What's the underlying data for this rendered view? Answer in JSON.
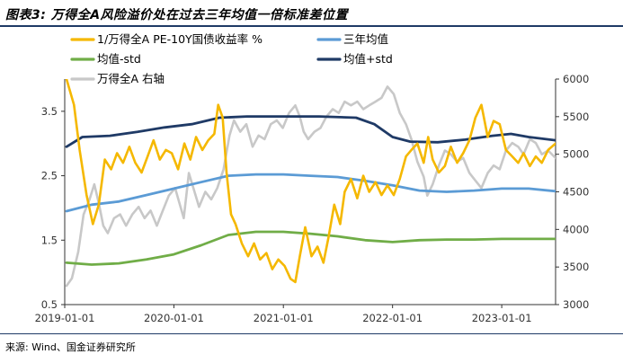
{
  "figure": {
    "title": "图表3: 万得全A风险溢价处在过去三年均值一倍标准差位置",
    "source": "来源: Wind、国金证券研究所"
  },
  "chart_data": {
    "type": "line",
    "x_tick_labels": [
      "2019-01-01",
      "2020-01-01",
      "2021-01-01",
      "2022-01-01",
      "2023-01-01"
    ],
    "x_range": [
      "2019-01-01",
      "2023-06-30"
    ],
    "left_axis": {
      "range": [
        0.5,
        4.0
      ],
      "ticks": [
        "0.5",
        "1.5",
        "2.5",
        "3.5"
      ]
    },
    "right_axis": {
      "range": [
        3000,
        6000
      ],
      "ticks": [
        "3000",
        "3500",
        "4000",
        "4500",
        "5000",
        "5500",
        "6000"
      ]
    },
    "legend": [
      "1/万得全A PE-10Y国债收益率 %",
      "三年均值",
      "均值-std",
      "均值+std",
      "万得全A 右轴"
    ],
    "legend_placement": "top",
    "grid": false,
    "series": [
      {
        "name": "1/万得全A PE-10Y国债收益率 %",
        "axis": "left",
        "color": "#F5B800",
        "points": [
          [
            "2019-01-07",
            4.0
          ],
          [
            "2019-02-01",
            3.6
          ],
          [
            "2019-02-20",
            2.9
          ],
          [
            "2019-03-15",
            2.2
          ],
          [
            "2019-04-05",
            1.75
          ],
          [
            "2019-04-25",
            2.05
          ],
          [
            "2019-05-15",
            2.75
          ],
          [
            "2019-06-05",
            2.6
          ],
          [
            "2019-06-25",
            2.85
          ],
          [
            "2019-07-15",
            2.7
          ],
          [
            "2019-08-05",
            2.95
          ],
          [
            "2019-08-25",
            2.7
          ],
          [
            "2019-09-15",
            2.55
          ],
          [
            "2019-10-05",
            2.8
          ],
          [
            "2019-10-25",
            3.05
          ],
          [
            "2019-11-15",
            2.75
          ],
          [
            "2019-12-05",
            2.9
          ],
          [
            "2019-12-25",
            2.85
          ],
          [
            "2020-01-15",
            2.6
          ],
          [
            "2020-02-05",
            3.0
          ],
          [
            "2020-02-25",
            2.75
          ],
          [
            "2020-03-15",
            3.1
          ],
          [
            "2020-04-05",
            2.9
          ],
          [
            "2020-04-25",
            3.05
          ],
          [
            "2020-05-15",
            3.15
          ],
          [
            "2020-05-28",
            3.6
          ],
          [
            "2020-06-12",
            3.4
          ],
          [
            "2020-06-25",
            2.55
          ],
          [
            "2020-07-10",
            1.9
          ],
          [
            "2020-07-25",
            1.75
          ],
          [
            "2020-08-15",
            1.45
          ],
          [
            "2020-09-05",
            1.25
          ],
          [
            "2020-09-25",
            1.45
          ],
          [
            "2020-10-15",
            1.2
          ],
          [
            "2020-11-05",
            1.3
          ],
          [
            "2020-11-25",
            1.05
          ],
          [
            "2020-12-15",
            1.2
          ],
          [
            "2021-01-05",
            1.1
          ],
          [
            "2021-01-25",
            0.9
          ],
          [
            "2021-02-10",
            0.85
          ],
          [
            "2021-02-25",
            1.25
          ],
          [
            "2021-03-15",
            1.7
          ],
          [
            "2021-04-05",
            1.25
          ],
          [
            "2021-04-25",
            1.4
          ],
          [
            "2021-05-15",
            1.15
          ],
          [
            "2021-06-01",
            1.55
          ],
          [
            "2021-06-20",
            2.05
          ],
          [
            "2021-07-10",
            1.75
          ],
          [
            "2021-07-25",
            2.25
          ],
          [
            "2021-08-15",
            2.45
          ],
          [
            "2021-09-05",
            2.15
          ],
          [
            "2021-09-25",
            2.5
          ],
          [
            "2021-10-15",
            2.25
          ],
          [
            "2021-11-05",
            2.4
          ],
          [
            "2021-11-25",
            2.2
          ],
          [
            "2021-12-15",
            2.35
          ],
          [
            "2022-01-05",
            2.2
          ],
          [
            "2022-01-25",
            2.45
          ],
          [
            "2022-02-15",
            2.8
          ],
          [
            "2022-03-05",
            2.9
          ],
          [
            "2022-03-25",
            3.0
          ],
          [
            "2022-04-15",
            2.7
          ],
          [
            "2022-04-30",
            3.1
          ],
          [
            "2022-05-15",
            2.75
          ],
          [
            "2022-06-05",
            2.55
          ],
          [
            "2022-06-25",
            2.65
          ],
          [
            "2022-07-15",
            2.95
          ],
          [
            "2022-08-05",
            2.7
          ],
          [
            "2022-08-25",
            2.85
          ],
          [
            "2022-09-15",
            3.05
          ],
          [
            "2022-10-05",
            3.4
          ],
          [
            "2022-10-25",
            3.6
          ],
          [
            "2022-11-15",
            3.1
          ],
          [
            "2022-12-05",
            3.35
          ],
          [
            "2022-12-25",
            3.3
          ],
          [
            "2023-01-15",
            2.9
          ],
          [
            "2023-02-05",
            2.8
          ],
          [
            "2023-02-25",
            2.7
          ],
          [
            "2023-03-15",
            2.85
          ],
          [
            "2023-04-05",
            2.65
          ],
          [
            "2023-04-25",
            2.8
          ],
          [
            "2023-05-15",
            2.7
          ],
          [
            "2023-06-05",
            2.9
          ],
          [
            "2023-06-30",
            3.0
          ]
        ]
      },
      {
        "name": "三年均值",
        "axis": "left",
        "color": "#5B9BD5",
        "points": [
          [
            "2019-01-07",
            1.95
          ],
          [
            "2019-04-01",
            2.05
          ],
          [
            "2019-07-01",
            2.1
          ],
          [
            "2019-10-01",
            2.2
          ],
          [
            "2020-01-01",
            2.3
          ],
          [
            "2020-04-01",
            2.4
          ],
          [
            "2020-07-01",
            2.5
          ],
          [
            "2020-10-01",
            2.52
          ],
          [
            "2021-01-01",
            2.52
          ],
          [
            "2021-04-01",
            2.5
          ],
          [
            "2021-07-01",
            2.48
          ],
          [
            "2021-10-01",
            2.42
          ],
          [
            "2022-01-01",
            2.35
          ],
          [
            "2022-04-01",
            2.27
          ],
          [
            "2022-07-01",
            2.25
          ],
          [
            "2022-10-01",
            2.27
          ],
          [
            "2023-01-01",
            2.3
          ],
          [
            "2023-04-01",
            2.3
          ],
          [
            "2023-06-30",
            2.26
          ]
        ]
      },
      {
        "name": "均值-std",
        "axis": "left",
        "color": "#70AD47",
        "points": [
          [
            "2019-01-07",
            1.15
          ],
          [
            "2019-04-01",
            1.12
          ],
          [
            "2019-07-01",
            1.14
          ],
          [
            "2019-10-01",
            1.2
          ],
          [
            "2020-01-01",
            1.28
          ],
          [
            "2020-04-01",
            1.42
          ],
          [
            "2020-07-01",
            1.58
          ],
          [
            "2020-10-01",
            1.63
          ],
          [
            "2021-01-01",
            1.63
          ],
          [
            "2021-04-01",
            1.6
          ],
          [
            "2021-07-01",
            1.56
          ],
          [
            "2021-10-01",
            1.5
          ],
          [
            "2022-01-01",
            1.47
          ],
          [
            "2022-04-01",
            1.5
          ],
          [
            "2022-07-01",
            1.51
          ],
          [
            "2022-10-01",
            1.51
          ],
          [
            "2023-01-01",
            1.52
          ],
          [
            "2023-04-01",
            1.52
          ],
          [
            "2023-06-30",
            1.52
          ]
        ]
      },
      {
        "name": "均值+std",
        "axis": "left",
        "color": "#1F3A66",
        "points": [
          [
            "2019-01-07",
            2.95
          ],
          [
            "2019-03-01",
            3.1
          ],
          [
            "2019-06-01",
            3.12
          ],
          [
            "2019-09-01",
            3.18
          ],
          [
            "2019-12-01",
            3.25
          ],
          [
            "2020-03-01",
            3.3
          ],
          [
            "2020-06-01",
            3.4
          ],
          [
            "2020-09-01",
            3.42
          ],
          [
            "2021-01-01",
            3.42
          ],
          [
            "2021-05-01",
            3.42
          ],
          [
            "2021-09-01",
            3.4
          ],
          [
            "2021-11-01",
            3.3
          ],
          [
            "2022-01-01",
            3.1
          ],
          [
            "2022-03-01",
            3.03
          ],
          [
            "2022-06-01",
            3.02
          ],
          [
            "2022-09-01",
            3.06
          ],
          [
            "2022-12-01",
            3.12
          ],
          [
            "2023-02-01",
            3.15
          ],
          [
            "2023-04-01",
            3.1
          ],
          [
            "2023-06-30",
            3.05
          ]
        ]
      },
      {
        "name": "万得全A 右轴",
        "axis": "right",
        "color": "#C8C8C8",
        "points": [
          [
            "2019-01-07",
            3250
          ],
          [
            "2019-01-25",
            3350
          ],
          [
            "2019-02-15",
            3700
          ],
          [
            "2019-03-05",
            4200
          ],
          [
            "2019-03-25",
            4400
          ],
          [
            "2019-04-10",
            4600
          ],
          [
            "2019-04-25",
            4350
          ],
          [
            "2019-05-10",
            4050
          ],
          [
            "2019-05-25",
            3950
          ],
          [
            "2019-06-15",
            4150
          ],
          [
            "2019-07-05",
            4200
          ],
          [
            "2019-07-25",
            4050
          ],
          [
            "2019-08-15",
            4200
          ],
          [
            "2019-09-05",
            4300
          ],
          [
            "2019-09-25",
            4150
          ],
          [
            "2019-10-15",
            4250
          ],
          [
            "2019-11-05",
            4050
          ],
          [
            "2019-11-25",
            4250
          ],
          [
            "2019-12-15",
            4450
          ],
          [
            "2020-01-05",
            4550
          ],
          [
            "2020-02-03",
            4150
          ],
          [
            "2020-02-20",
            4750
          ],
          [
            "2020-03-10",
            4500
          ],
          [
            "2020-03-25",
            4300
          ],
          [
            "2020-04-15",
            4500
          ],
          [
            "2020-05-05",
            4400
          ],
          [
            "2020-05-25",
            4550
          ],
          [
            "2020-06-15",
            4800
          ],
          [
            "2020-07-05",
            5250
          ],
          [
            "2020-07-20",
            5450
          ],
          [
            "2020-08-10",
            5300
          ],
          [
            "2020-08-30",
            5400
          ],
          [
            "2020-09-20",
            5100
          ],
          [
            "2020-10-10",
            5250
          ],
          [
            "2020-10-30",
            5200
          ],
          [
            "2020-11-20",
            5400
          ],
          [
            "2020-12-10",
            5450
          ],
          [
            "2020-12-30",
            5350
          ],
          [
            "2021-01-20",
            5550
          ],
          [
            "2021-02-10",
            5650
          ],
          [
            "2021-02-25",
            5500
          ],
          [
            "2021-03-10",
            5300
          ],
          [
            "2021-03-25",
            5200
          ],
          [
            "2021-04-15",
            5300
          ],
          [
            "2021-05-05",
            5350
          ],
          [
            "2021-05-25",
            5500
          ],
          [
            "2021-06-15",
            5600
          ],
          [
            "2021-07-05",
            5550
          ],
          [
            "2021-07-25",
            5700
          ],
          [
            "2021-08-15",
            5650
          ],
          [
            "2021-09-05",
            5700
          ],
          [
            "2021-09-25",
            5600
          ],
          [
            "2021-10-15",
            5650
          ],
          [
            "2021-11-05",
            5700
          ],
          [
            "2021-11-25",
            5750
          ],
          [
            "2021-12-15",
            5900
          ],
          [
            "2022-01-05",
            5800
          ],
          [
            "2022-01-25",
            5550
          ],
          [
            "2022-02-15",
            5400
          ],
          [
            "2022-03-05",
            5200
          ],
          [
            "2022-03-25",
            4900
          ],
          [
            "2022-04-15",
            4700
          ],
          [
            "2022-04-27",
            4450
          ],
          [
            "2022-05-15",
            4600
          ],
          [
            "2022-06-05",
            4850
          ],
          [
            "2022-06-25",
            5050
          ],
          [
            "2022-07-15",
            5000
          ],
          [
            "2022-08-05",
            4900
          ],
          [
            "2022-08-25",
            4950
          ],
          [
            "2022-09-15",
            4750
          ],
          [
            "2022-10-05",
            4650
          ],
          [
            "2022-10-25",
            4550
          ],
          [
            "2022-11-15",
            4750
          ],
          [
            "2022-12-05",
            4850
          ],
          [
            "2022-12-25",
            4800
          ],
          [
            "2023-01-15",
            5050
          ],
          [
            "2023-02-05",
            5150
          ],
          [
            "2023-02-25",
            5100
          ],
          [
            "2023-03-15",
            5000
          ],
          [
            "2023-04-05",
            5200
          ],
          [
            "2023-04-25",
            5150
          ],
          [
            "2023-05-15",
            5000
          ],
          [
            "2023-06-05",
            5050
          ],
          [
            "2023-06-30",
            4950
          ]
        ]
      }
    ]
  }
}
